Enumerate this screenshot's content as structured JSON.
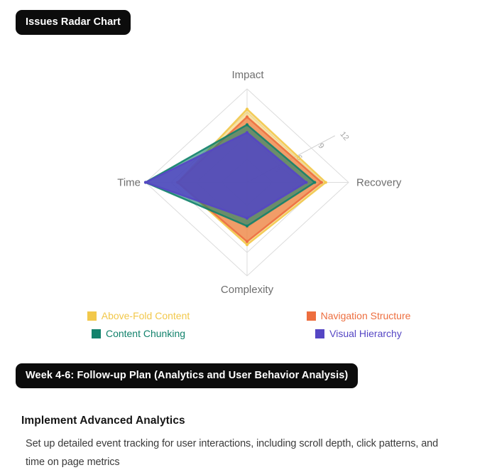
{
  "badges": {
    "radar_title": "Issues Radar Chart",
    "followup_title": "Week 4-6: Follow-up Plan (Analytics and User Behavior Analysis)"
  },
  "section": {
    "heading": "Implement Advanced Analytics",
    "body_lines": [
      "Set up detailed event tracking for user interactions, including scroll depth, click patterns, and",
      "time on page metrics"
    ]
  },
  "chart_data": {
    "type": "radar",
    "title": "Issues Radar Chart",
    "axes": [
      "Impact",
      "Recovery",
      "Complexity",
      "Time"
    ],
    "max": 12,
    "ticks": [
      3,
      6,
      9,
      12
    ],
    "grid": "diamond-rings",
    "legend_position": "bottom",
    "axis_label_color": "#6e6e6e",
    "grid_color": "#dcdcdc",
    "tick_label_color": "#a3a3a3",
    "series": [
      {
        "name": "Above-Fold Content",
        "color": "#f2c84b",
        "fill_opacity": 0.5,
        "values": [
          9.4,
          9.3,
          8.0,
          8.2
        ]
      },
      {
        "name": "Navigation Structure",
        "color": "#ed6e3f",
        "fill_opacity": 0.6,
        "values": [
          8.4,
          8.8,
          7.6,
          8.2
        ]
      },
      {
        "name": "Content Chunking",
        "color": "#12826c",
        "fill_opacity": 0.6,
        "values": [
          7.4,
          8.0,
          5.6,
          12.0
        ]
      },
      {
        "name": "Visual Hierarchy",
        "color": "#5546c4",
        "fill_opacity": 0.85,
        "values": [
          6.4,
          7.0,
          4.6,
          12.0
        ]
      }
    ]
  }
}
